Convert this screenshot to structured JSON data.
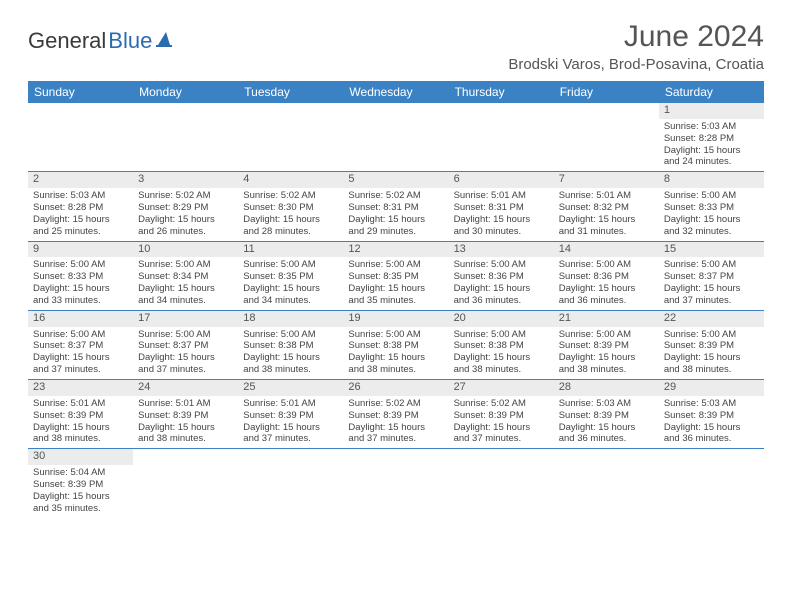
{
  "logo": {
    "general": "General",
    "blue": "Blue"
  },
  "header": {
    "title": "June 2024",
    "location": "Brodski Varos, Brod-Posavina, Croatia"
  },
  "columns": [
    "Sunday",
    "Monday",
    "Tuesday",
    "Wednesday",
    "Thursday",
    "Friday",
    "Saturday"
  ],
  "colors": {
    "header_bg": "#3b82c4",
    "daynum_bg": "#ececec",
    "border": "#3b82c4"
  },
  "weeks": [
    [
      null,
      null,
      null,
      null,
      null,
      null,
      {
        "n": "1",
        "sr": "Sunrise: 5:03 AM",
        "ss": "Sunset: 8:28 PM",
        "d1": "Daylight: 15 hours",
        "d2": "and 24 minutes."
      }
    ],
    [
      {
        "n": "2",
        "sr": "Sunrise: 5:03 AM",
        "ss": "Sunset: 8:28 PM",
        "d1": "Daylight: 15 hours",
        "d2": "and 25 minutes."
      },
      {
        "n": "3",
        "sr": "Sunrise: 5:02 AM",
        "ss": "Sunset: 8:29 PM",
        "d1": "Daylight: 15 hours",
        "d2": "and 26 minutes."
      },
      {
        "n": "4",
        "sr": "Sunrise: 5:02 AM",
        "ss": "Sunset: 8:30 PM",
        "d1": "Daylight: 15 hours",
        "d2": "and 28 minutes."
      },
      {
        "n": "5",
        "sr": "Sunrise: 5:02 AM",
        "ss": "Sunset: 8:31 PM",
        "d1": "Daylight: 15 hours",
        "d2": "and 29 minutes."
      },
      {
        "n": "6",
        "sr": "Sunrise: 5:01 AM",
        "ss": "Sunset: 8:31 PM",
        "d1": "Daylight: 15 hours",
        "d2": "and 30 minutes."
      },
      {
        "n": "7",
        "sr": "Sunrise: 5:01 AM",
        "ss": "Sunset: 8:32 PM",
        "d1": "Daylight: 15 hours",
        "d2": "and 31 minutes."
      },
      {
        "n": "8",
        "sr": "Sunrise: 5:00 AM",
        "ss": "Sunset: 8:33 PM",
        "d1": "Daylight: 15 hours",
        "d2": "and 32 minutes."
      }
    ],
    [
      {
        "n": "9",
        "sr": "Sunrise: 5:00 AM",
        "ss": "Sunset: 8:33 PM",
        "d1": "Daylight: 15 hours",
        "d2": "and 33 minutes."
      },
      {
        "n": "10",
        "sr": "Sunrise: 5:00 AM",
        "ss": "Sunset: 8:34 PM",
        "d1": "Daylight: 15 hours",
        "d2": "and 34 minutes."
      },
      {
        "n": "11",
        "sr": "Sunrise: 5:00 AM",
        "ss": "Sunset: 8:35 PM",
        "d1": "Daylight: 15 hours",
        "d2": "and 34 minutes."
      },
      {
        "n": "12",
        "sr": "Sunrise: 5:00 AM",
        "ss": "Sunset: 8:35 PM",
        "d1": "Daylight: 15 hours",
        "d2": "and 35 minutes."
      },
      {
        "n": "13",
        "sr": "Sunrise: 5:00 AM",
        "ss": "Sunset: 8:36 PM",
        "d1": "Daylight: 15 hours",
        "d2": "and 36 minutes."
      },
      {
        "n": "14",
        "sr": "Sunrise: 5:00 AM",
        "ss": "Sunset: 8:36 PM",
        "d1": "Daylight: 15 hours",
        "d2": "and 36 minutes."
      },
      {
        "n": "15",
        "sr": "Sunrise: 5:00 AM",
        "ss": "Sunset: 8:37 PM",
        "d1": "Daylight: 15 hours",
        "d2": "and 37 minutes."
      }
    ],
    [
      {
        "n": "16",
        "sr": "Sunrise: 5:00 AM",
        "ss": "Sunset: 8:37 PM",
        "d1": "Daylight: 15 hours",
        "d2": "and 37 minutes."
      },
      {
        "n": "17",
        "sr": "Sunrise: 5:00 AM",
        "ss": "Sunset: 8:37 PM",
        "d1": "Daylight: 15 hours",
        "d2": "and 37 minutes."
      },
      {
        "n": "18",
        "sr": "Sunrise: 5:00 AM",
        "ss": "Sunset: 8:38 PM",
        "d1": "Daylight: 15 hours",
        "d2": "and 38 minutes."
      },
      {
        "n": "19",
        "sr": "Sunrise: 5:00 AM",
        "ss": "Sunset: 8:38 PM",
        "d1": "Daylight: 15 hours",
        "d2": "and 38 minutes."
      },
      {
        "n": "20",
        "sr": "Sunrise: 5:00 AM",
        "ss": "Sunset: 8:38 PM",
        "d1": "Daylight: 15 hours",
        "d2": "and 38 minutes."
      },
      {
        "n": "21",
        "sr": "Sunrise: 5:00 AM",
        "ss": "Sunset: 8:39 PM",
        "d1": "Daylight: 15 hours",
        "d2": "and 38 minutes."
      },
      {
        "n": "22",
        "sr": "Sunrise: 5:00 AM",
        "ss": "Sunset: 8:39 PM",
        "d1": "Daylight: 15 hours",
        "d2": "and 38 minutes."
      }
    ],
    [
      {
        "n": "23",
        "sr": "Sunrise: 5:01 AM",
        "ss": "Sunset: 8:39 PM",
        "d1": "Daylight: 15 hours",
        "d2": "and 38 minutes."
      },
      {
        "n": "24",
        "sr": "Sunrise: 5:01 AM",
        "ss": "Sunset: 8:39 PM",
        "d1": "Daylight: 15 hours",
        "d2": "and 38 minutes."
      },
      {
        "n": "25",
        "sr": "Sunrise: 5:01 AM",
        "ss": "Sunset: 8:39 PM",
        "d1": "Daylight: 15 hours",
        "d2": "and 37 minutes."
      },
      {
        "n": "26",
        "sr": "Sunrise: 5:02 AM",
        "ss": "Sunset: 8:39 PM",
        "d1": "Daylight: 15 hours",
        "d2": "and 37 minutes."
      },
      {
        "n": "27",
        "sr": "Sunrise: 5:02 AM",
        "ss": "Sunset: 8:39 PM",
        "d1": "Daylight: 15 hours",
        "d2": "and 37 minutes."
      },
      {
        "n": "28",
        "sr": "Sunrise: 5:03 AM",
        "ss": "Sunset: 8:39 PM",
        "d1": "Daylight: 15 hours",
        "d2": "and 36 minutes."
      },
      {
        "n": "29",
        "sr": "Sunrise: 5:03 AM",
        "ss": "Sunset: 8:39 PM",
        "d1": "Daylight: 15 hours",
        "d2": "and 36 minutes."
      }
    ],
    [
      {
        "n": "30",
        "sr": "Sunrise: 5:04 AM",
        "ss": "Sunset: 8:39 PM",
        "d1": "Daylight: 15 hours",
        "d2": "and 35 minutes."
      },
      null,
      null,
      null,
      null,
      null,
      null
    ]
  ]
}
